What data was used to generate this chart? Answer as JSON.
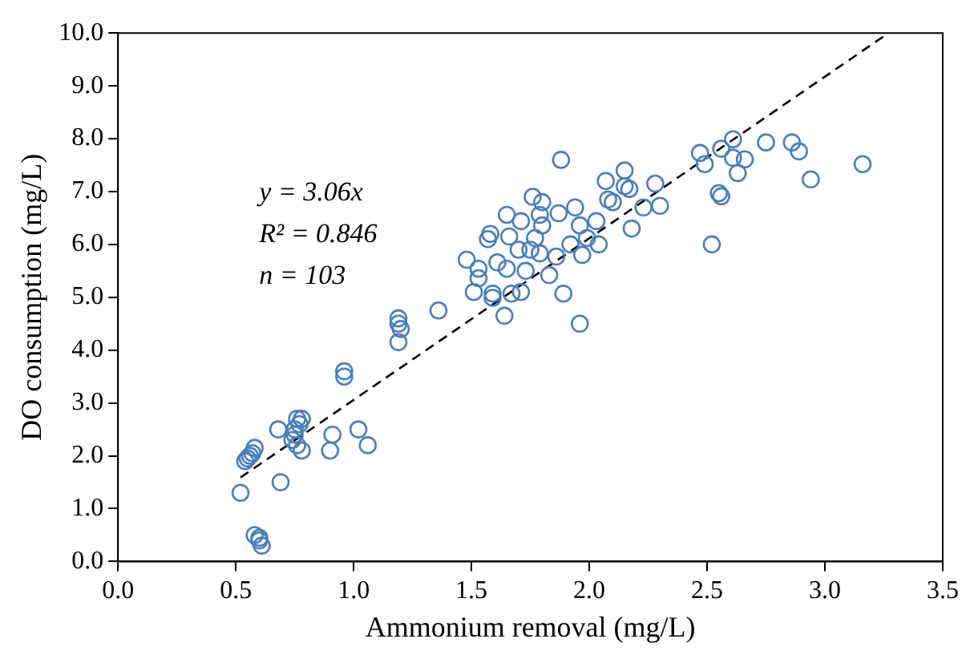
{
  "chart_data": {
    "type": "scatter",
    "xlabel": "Ammonium removal (mg/L)",
    "ylabel": "DO consumption (mg/L)",
    "xlim": [
      0,
      3.5
    ],
    "ylim": [
      0,
      10
    ],
    "xticks": [
      {
        "value": 0,
        "label": "0.0"
      },
      {
        "value": 0.5,
        "label": "0.5"
      },
      {
        "value": 1,
        "label": "1.0"
      },
      {
        "value": 1.5,
        "label": "1.5"
      },
      {
        "value": 2,
        "label": "2.0"
      },
      {
        "value": 2.5,
        "label": "2.5"
      },
      {
        "value": 3,
        "label": "3.0"
      },
      {
        "value": 3.5,
        "label": "3.5"
      }
    ],
    "yticks": [
      {
        "value": 0,
        "label": "0.0"
      },
      {
        "value": 1,
        "label": "1.0"
      },
      {
        "value": 2,
        "label": "2.0"
      },
      {
        "value": 3,
        "label": "3.0"
      },
      {
        "value": 4,
        "label": "4.0"
      },
      {
        "value": 5,
        "label": "5.0"
      },
      {
        "value": 6,
        "label": "6.0"
      },
      {
        "value": 7,
        "label": "7.0"
      },
      {
        "value": 8,
        "label": "8.0"
      },
      {
        "value": 9,
        "label": "9.0"
      },
      {
        "value": 10,
        "label": "10.0"
      }
    ],
    "grid": false,
    "legend": false,
    "marker": "circle",
    "annotations": [
      "y = 3.06x",
      "R² = 0.846",
      "n = 103"
    ],
    "series": [
      {
        "color": "#4a7ebb",
        "x": [
          0.52,
          0.55,
          0.54,
          0.56,
          0.58,
          0.57,
          0.58,
          0.6,
          0.61,
          0.6,
          0.68,
          0.69,
          0.75,
          0.76,
          0.77,
          0.75,
          0.78,
          0.76,
          0.78,
          0.74,
          0.9,
          0.91,
          0.96,
          0.96,
          1.02,
          1.06,
          1.19,
          1.19,
          1.2,
          1.19,
          1.36,
          1.76,
          1.8,
          1.65,
          1.71,
          1.79,
          1.87,
          1.94,
          2.08,
          2.15,
          2.28,
          2.23,
          2.3,
          2.18,
          1.58,
          1.57,
          1.66,
          1.8,
          1.77,
          1.96,
          2.03,
          1.99,
          1.92,
          1.7,
          1.75,
          1.79,
          1.48,
          1.61,
          1.86,
          1.97,
          2.04,
          1.53,
          1.65,
          1.73,
          1.53,
          1.83,
          1.51,
          1.59,
          1.59,
          1.67,
          1.71,
          1.89,
          1.64,
          1.96,
          2.47,
          2.61,
          2.56,
          2.49,
          2.61,
          2.66,
          2.63,
          2.75,
          2.86,
          2.89,
          3.16,
          2.94,
          2.55,
          2.56,
          2.52,
          1.88,
          2.07,
          2.15,
          2.17,
          2.1
        ],
        "values": [
          1.3,
          1.95,
          1.9,
          2.0,
          2.15,
          2.05,
          0.5,
          0.45,
          0.3,
          0.4,
          2.5,
          1.5,
          2.4,
          2.7,
          2.6,
          2.5,
          2.7,
          2.2,
          2.1,
          2.3,
          2.1,
          2.4,
          3.6,
          3.5,
          2.5,
          2.2,
          4.6,
          4.5,
          4.4,
          4.15,
          4.75,
          6.9,
          6.8,
          6.56,
          6.44,
          6.56,
          6.59,
          6.7,
          6.85,
          7.1,
          7.15,
          6.7,
          6.73,
          6.3,
          6.2,
          6.1,
          6.15,
          6.36,
          6.12,
          6.36,
          6.44,
          6.12,
          6.0,
          5.9,
          5.9,
          5.83,
          5.71,
          5.66,
          5.77,
          5.8,
          6.0,
          5.54,
          5.54,
          5.5,
          5.36,
          5.42,
          5.1,
          5.07,
          4.99,
          5.07,
          5.1,
          5.07,
          4.65,
          4.5,
          7.73,
          7.99,
          7.81,
          7.52,
          7.64,
          7.61,
          7.35,
          7.93,
          7.93,
          7.76,
          7.52,
          7.23,
          6.97,
          6.91,
          6.0,
          7.6,
          7.2,
          7.4,
          7.05,
          6.8
        ]
      },
      {
        "type": "line",
        "color": "#000000",
        "line_style": "dashed",
        "marker": "none",
        "x": [
          0.52,
          3.27
        ],
        "values": [
          1.59,
          10.0
        ]
      }
    ]
  }
}
